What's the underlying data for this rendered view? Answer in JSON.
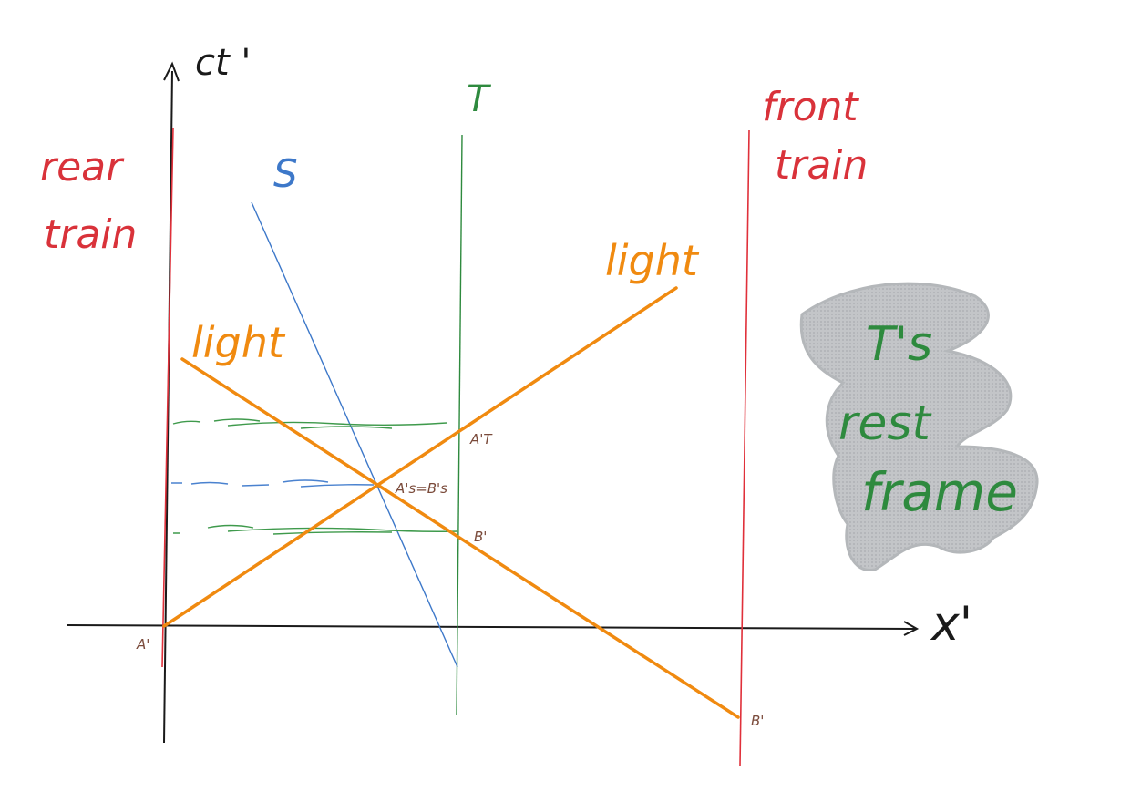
{
  "axes": {
    "t_label": "ct '",
    "x_label": "x'"
  },
  "worldlines": {
    "rear_train": [
      "rear",
      "train"
    ],
    "front_train": [
      "front",
      "train"
    ],
    "S": "S",
    "T": "T"
  },
  "light_labels": {
    "left": "light",
    "right": "light"
  },
  "events": {
    "A_origin": "A'",
    "A_T": "A'T",
    "A_S_eq_B_S": "A's=B's",
    "B_on_T": "B'",
    "B_end": "B'"
  },
  "frame_note": [
    "T's",
    "rest",
    "frame"
  ],
  "colors": {
    "axes": "#1a1a1a",
    "train": "#e0303a",
    "S": "#3d78c9",
    "T": "#2e8a3e",
    "light": "#f08a10",
    "event_labels": "#7a4a3a",
    "scribble": "#b9bcbf"
  }
}
